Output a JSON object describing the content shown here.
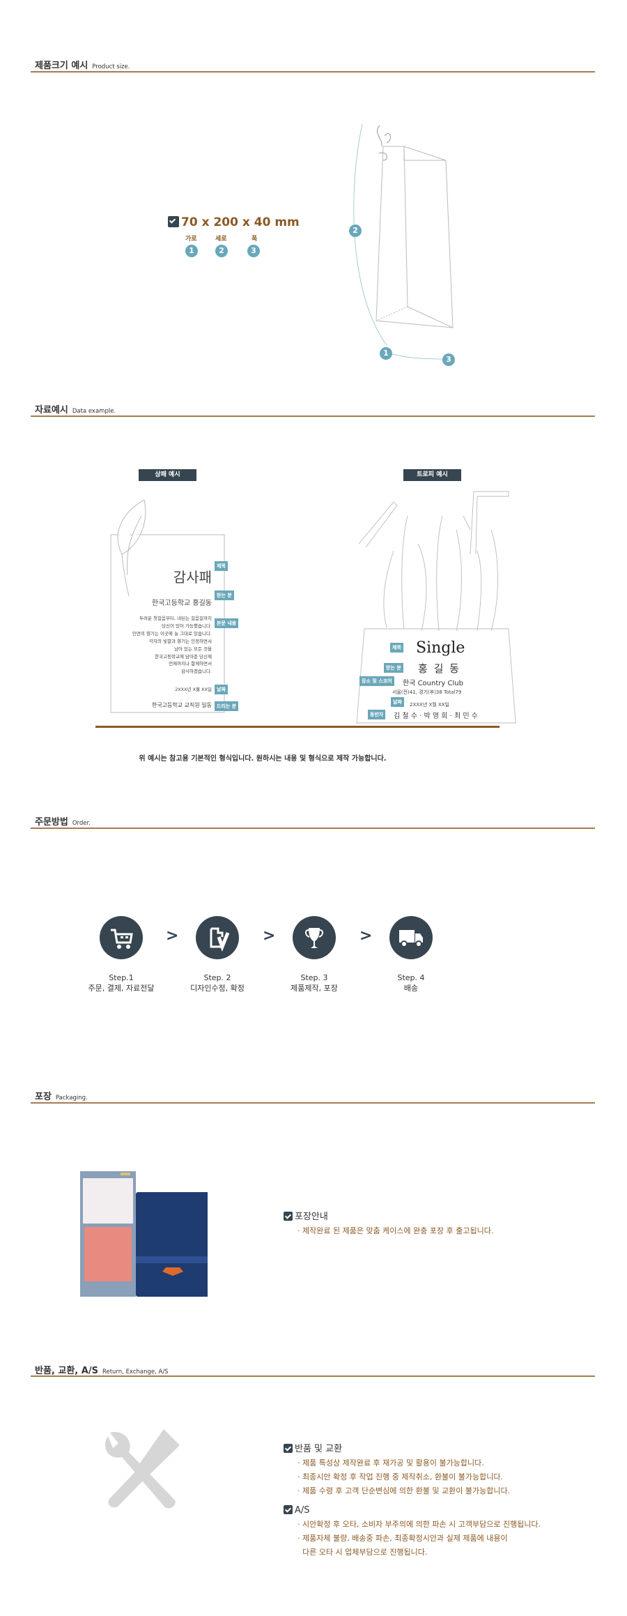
{
  "colors": {
    "accent_brown": "#a27d4e",
    "text_brown": "#8a5a24",
    "dark": "#36454f",
    "tag_teal": "#6aa7b9"
  },
  "sections": {
    "size": {
      "title": "제품크기 예시",
      "subtitle": "Product size."
    },
    "data": {
      "title": "자료예시",
      "subtitle": "Data example."
    },
    "order": {
      "title": "주문방법",
      "subtitle": "Order."
    },
    "packaging": {
      "title": "포장",
      "subtitle": "Packaging."
    },
    "returns": {
      "title": "반품, 교환, A/S",
      "subtitle": "Return, Exchange, A/S"
    }
  },
  "size": {
    "dimensions": "70 x 200 x 40 mm",
    "labels": [
      {
        "text": "가로",
        "num": "1"
      },
      {
        "text": "세로",
        "num": "2"
      },
      {
        "text": "폭",
        "num": "3"
      }
    ]
  },
  "plaque": {
    "label": "상패 예시",
    "title": "감사패",
    "recipient": "한국고등학교 홍길동",
    "body": [
      "두려운 첫걸음부터, 내딛는 걸음걸까지",
      "당신이 있어 가능했습니다.",
      "인연의 향기는 이곳에 늘 그대로 있습니다.",
      "각자의 빛깔과 향기는 인정하면서",
      "남아 있는 모든 것을",
      "한국고등학교에 담아준 당신께",
      "언제까지나 함께하면서",
      "감사하겠습니다."
    ],
    "date": "2XXX년 X월 XX일",
    "giver": "한국고등학교 교직원 일동",
    "tags": {
      "title": "제목",
      "recipient": "받는 분",
      "body": "본문 내용",
      "date": "날짜",
      "giver": "드리는 분"
    }
  },
  "trophy": {
    "label": "트로피 예시",
    "title": "Single",
    "recipient": "홍 길 동",
    "place": "한국 Country Club",
    "score": "서울(전)41, 경기(후)38 Total79",
    "date": "2XXX년 X월 XX일",
    "companions": "김 철 수 · 박 영 희 · 최 민 수",
    "tags": {
      "title": "제목",
      "recipient": "받는 분",
      "place": "장소 및 스코어",
      "date": "날짜",
      "companions": "동반자"
    }
  },
  "data_note": "위 예시는 참고용 기본적인 형식입니다. 원하시는 내용 및 형식으로 제작 가능합니다.",
  "steps": [
    {
      "step": "Step.1",
      "desc": "주문, 결제, 자료전달",
      "icon": "cart-icon"
    },
    {
      "step": "Step. 2",
      "desc": "디자인수정, 확정",
      "icon": "document-check-icon"
    },
    {
      "step": "Step. 3",
      "desc": "제품제작, 포장",
      "icon": "trophy-icon"
    },
    {
      "step": "Step. 4",
      "desc": "배송",
      "icon": "truck-icon"
    }
  ],
  "step_arrow": ">",
  "packaging": {
    "heading": "포장안내",
    "items": [
      "· 제작완료 된 제품은 맞춤 케이스에 완충 포장 후 출고됩니다."
    ]
  },
  "returns": {
    "heading": "반품 및 교환",
    "items": [
      "· 제품 특성상 제작완료 후 재가공 및 활용이 불가능합니다.",
      "· 최종시안 확정 후 작업 진행 중 제작취소, 환불이 불가능합니다.",
      "· 제품 수령 후 고객 단순변심에 의한 환불 및 교환이 불가능합니다."
    ],
    "as_heading": "A/S",
    "as_items": [
      "· 시안확정 후 오타, 소비자 부주의에 의한 파손 시 고객부담으로 진행됩니다.",
      "· 제품자체 불량, 배송중 파손, 최종확정시안과 실제 제품에 내용이",
      "다른 오타 시 업체부담으로 진행됩니다."
    ]
  }
}
